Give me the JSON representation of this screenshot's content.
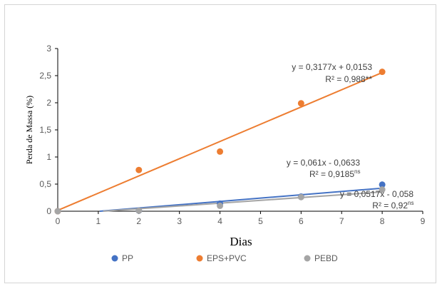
{
  "chart_data": {
    "type": "scatter",
    "xlabel": "Dias",
    "ylabel": "Perda de Massa (%)",
    "xlim": [
      0,
      9
    ],
    "ylim": [
      0,
      3
    ],
    "x_ticks": [
      "0",
      "1",
      "2",
      "3",
      "4",
      "5",
      "6",
      "7",
      "8",
      "9"
    ],
    "y_ticks": [
      "0",
      "0,5",
      "1",
      "1,5",
      "2",
      "2,5",
      "3"
    ],
    "grid": false,
    "legend_position": "bottom",
    "series": [
      {
        "name": "PP",
        "color": "#4472c4",
        "x": [
          0,
          2,
          4,
          6,
          8
        ],
        "y": [
          0,
          0.01,
          0.14,
          0.27,
          0.49
        ],
        "trend": {
          "slope": 0.061,
          "intercept": -0.0633
        },
        "equation": "y = 0,061x - 0,0633",
        "r2_label": "R² = 0,9185",
        "r2_sup": "ns"
      },
      {
        "name": "EPS+PVC",
        "color": "#ed7d31",
        "x": [
          0,
          2,
          4,
          6,
          8
        ],
        "y": [
          0,
          0.76,
          1.1,
          1.99,
          2.57
        ],
        "trend": {
          "slope": 0.3177,
          "intercept": 0.0153
        },
        "equation": "y = 0,3177x + 0,0153",
        "r2_label": "R² = 0,988**",
        "r2_sup": ""
      },
      {
        "name": "PEBD",
        "color": "#a5a5a5",
        "x": [
          0,
          2,
          4,
          6,
          8
        ],
        "y": [
          0,
          0.01,
          0.1,
          0.26,
          0.4
        ],
        "trend": {
          "slope": 0.0517,
          "intercept": -0.058
        },
        "equation": "y = 0,0517x - 0,058",
        "r2_label": "R² = 0,92",
        "r2_sup": "ns"
      }
    ]
  }
}
